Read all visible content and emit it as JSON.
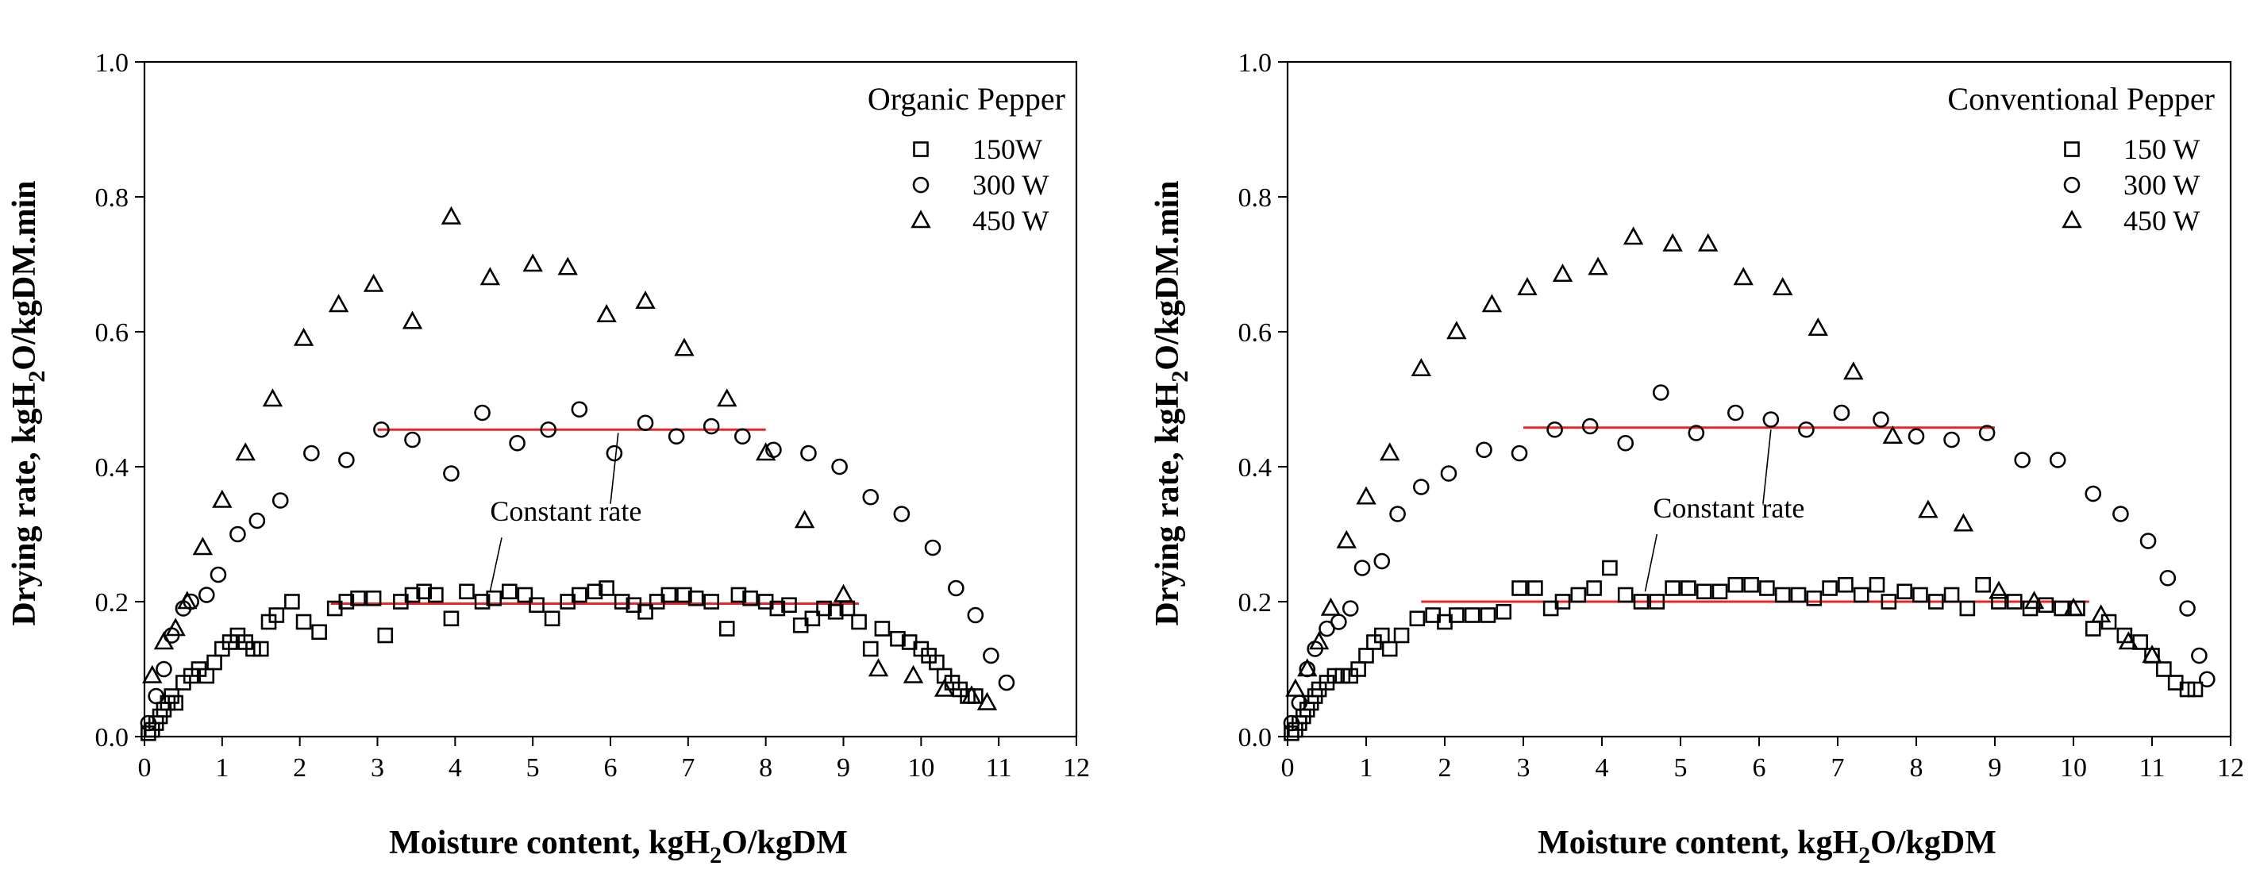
{
  "chart_data": [
    {
      "type": "scatter",
      "title": "Organic Pepper",
      "xlabel": "Moisture content, kgH2O/kgDM",
      "ylabel": "Drying rate, kgH2O/kgDM.min",
      "xlabel_parts": [
        "Moisture content, kgH",
        "2",
        "O/kgDM"
      ],
      "ylabel_parts": [
        "Drying rate, kgH",
        "2",
        "O/kgDM.min"
      ],
      "xlim": [
        0,
        12
      ],
      "ylim": [
        0,
        1.0
      ],
      "xticks": [
        "0",
        "1",
        "2",
        "3",
        "4",
        "5",
        "6",
        "7",
        "8",
        "9",
        "10",
        "11",
        "12"
      ],
      "yticks": [
        "0.0",
        "0.2",
        "0.4",
        "0.6",
        "0.8",
        "1.0"
      ],
      "grid": false,
      "legend_position": "top-right",
      "series": [
        {
          "name": "150W",
          "marker": "square",
          "x": [
            0.05,
            0.1,
            0.15,
            0.2,
            0.25,
            0.3,
            0.35,
            0.4,
            0.5,
            0.6,
            0.7,
            0.8,
            0.9,
            1.0,
            1.1,
            1.2,
            1.3,
            1.4,
            1.5,
            1.6,
            1.7,
            1.9,
            2.05,
            2.25,
            2.45,
            2.6,
            2.75,
            2.95,
            3.1,
            3.3,
            3.45,
            3.6,
            3.75,
            3.95,
            4.15,
            4.35,
            4.5,
            4.7,
            4.9,
            5.05,
            5.25,
            5.45,
            5.6,
            5.8,
            5.95,
            6.15,
            6.3,
            6.45,
            6.6,
            6.75,
            6.95,
            7.1,
            7.3,
            7.5,
            7.65,
            7.8,
            8.0,
            8.15,
            8.3,
            8.45,
            8.6,
            8.75,
            8.9,
            9.05,
            9.2,
            9.35,
            9.5,
            9.7,
            9.85,
            10.0,
            10.1,
            10.2,
            10.3,
            10.4,
            10.5,
            10.6,
            10.7
          ],
          "y": [
            0.005,
            0.01,
            0.02,
            0.03,
            0.04,
            0.05,
            0.06,
            0.05,
            0.08,
            0.09,
            0.1,
            0.09,
            0.11,
            0.13,
            0.14,
            0.15,
            0.14,
            0.13,
            0.13,
            0.17,
            0.18,
            0.2,
            0.17,
            0.155,
            0.19,
            0.2,
            0.205,
            0.205,
            0.15,
            0.2,
            0.21,
            0.215,
            0.21,
            0.175,
            0.215,
            0.2,
            0.205,
            0.215,
            0.21,
            0.195,
            0.175,
            0.2,
            0.21,
            0.215,
            0.22,
            0.2,
            0.195,
            0.185,
            0.2,
            0.21,
            0.21,
            0.205,
            0.2,
            0.16,
            0.21,
            0.205,
            0.2,
            0.19,
            0.195,
            0.165,
            0.175,
            0.19,
            0.185,
            0.19,
            0.17,
            0.13,
            0.16,
            0.145,
            0.14,
            0.13,
            0.12,
            0.11,
            0.09,
            0.08,
            0.07,
            0.06,
            0.06
          ]
        },
        {
          "name": "300 W",
          "marker": "circle",
          "x": [
            0.05,
            0.15,
            0.25,
            0.35,
            0.5,
            0.6,
            0.8,
            0.95,
            1.2,
            1.45,
            1.75,
            2.15,
            2.6,
            3.05,
            3.45,
            3.95,
            4.35,
            4.8,
            5.2,
            5.6,
            6.05,
            6.45,
            6.85,
            7.3,
            7.7,
            8.1,
            8.55,
            8.95,
            9.35,
            9.75,
            10.15,
            10.45,
            10.7,
            10.9,
            11.1
          ],
          "y": [
            0.02,
            0.06,
            0.1,
            0.15,
            0.19,
            0.2,
            0.21,
            0.24,
            0.3,
            0.32,
            0.35,
            0.42,
            0.41,
            0.455,
            0.44,
            0.39,
            0.48,
            0.435,
            0.455,
            0.485,
            0.42,
            0.465,
            0.445,
            0.46,
            0.445,
            0.425,
            0.42,
            0.4,
            0.355,
            0.33,
            0.28,
            0.22,
            0.18,
            0.12,
            0.08
          ]
        },
        {
          "name": "450 W",
          "marker": "triangle",
          "x": [
            0.1,
            0.25,
            0.4,
            0.55,
            0.75,
            1.0,
            1.3,
            1.65,
            2.05,
            2.5,
            2.95,
            3.45,
            3.95,
            4.45,
            5.0,
            5.45,
            5.95,
            6.45,
            6.95,
            7.5,
            8.0,
            8.5,
            9.0,
            9.45,
            9.9,
            10.3,
            10.65,
            10.85
          ],
          "y": [
            0.09,
            0.14,
            0.16,
            0.2,
            0.28,
            0.35,
            0.42,
            0.5,
            0.59,
            0.64,
            0.67,
            0.615,
            0.77,
            0.68,
            0.7,
            0.695,
            0.625,
            0.645,
            0.575,
            0.5,
            0.42,
            0.32,
            0.21,
            0.1,
            0.09,
            0.07,
            0.06,
            0.05
          ]
        }
      ],
      "fit_lines": [
        {
          "x": [
            3.0,
            8.0
          ],
          "y": [
            0.455,
            0.455
          ],
          "color": "#e8262a"
        },
        {
          "x": [
            2.4,
            9.2
          ],
          "y": [
            0.197,
            0.197
          ],
          "color": "#e8262a"
        }
      ],
      "annotation": {
        "text": "Constant rate",
        "x": 4.45,
        "y": 0.32,
        "pointers": [
          {
            "from": [
              6.0,
              0.345
            ],
            "to": [
              6.1,
              0.45
            ]
          },
          {
            "from": [
              4.6,
              0.295
            ],
            "to": [
              4.45,
              0.215
            ]
          }
        ]
      }
    },
    {
      "type": "scatter",
      "title": "Conventional Pepper",
      "xlabel": "Moisture content, kgH2O/kgDM",
      "ylabel": "Drying rate, kgH2O/kgDM.min",
      "xlabel_parts": [
        "Moisture content, kgH",
        "2",
        "O/kgDM"
      ],
      "ylabel_parts": [
        "Drying rate, kgH",
        "2",
        "O/kgDM.min"
      ],
      "xlim": [
        0,
        12
      ],
      "ylim": [
        0,
        1.0
      ],
      "xticks": [
        "0",
        "1",
        "2",
        "3",
        "4",
        "5",
        "6",
        "7",
        "8",
        "9",
        "10",
        "11",
        "12"
      ],
      "yticks": [
        "0.0",
        "0.2",
        "0.4",
        "0.6",
        "0.8",
        "1.0"
      ],
      "grid": false,
      "legend_position": "top-right",
      "series": [
        {
          "name": "150 W",
          "marker": "square",
          "x": [
            0.05,
            0.1,
            0.15,
            0.2,
            0.25,
            0.3,
            0.35,
            0.4,
            0.5,
            0.6,
            0.7,
            0.8,
            0.9,
            1.0,
            1.1,
            1.2,
            1.3,
            1.45,
            1.65,
            1.85,
            2.0,
            2.15,
            2.35,
            2.55,
            2.75,
            2.95,
            3.15,
            3.35,
            3.5,
            3.7,
            3.9,
            4.1,
            4.3,
            4.5,
            4.7,
            4.9,
            5.1,
            5.3,
            5.5,
            5.7,
            5.9,
            6.1,
            6.3,
            6.5,
            6.7,
            6.9,
            7.1,
            7.3,
            7.5,
            7.65,
            7.85,
            8.05,
            8.25,
            8.45,
            8.65,
            8.85,
            9.05,
            9.25,
            9.45,
            9.65,
            9.85,
            10.05,
            10.25,
            10.45,
            10.65,
            10.85,
            11.0,
            11.15,
            11.3,
            11.45,
            11.55
          ],
          "y": [
            0.005,
            0.01,
            0.02,
            0.03,
            0.04,
            0.05,
            0.06,
            0.07,
            0.08,
            0.09,
            0.09,
            0.09,
            0.1,
            0.12,
            0.14,
            0.15,
            0.13,
            0.15,
            0.175,
            0.18,
            0.17,
            0.18,
            0.18,
            0.18,
            0.185,
            0.22,
            0.22,
            0.19,
            0.2,
            0.21,
            0.22,
            0.25,
            0.21,
            0.2,
            0.2,
            0.22,
            0.22,
            0.215,
            0.215,
            0.225,
            0.225,
            0.22,
            0.21,
            0.21,
            0.205,
            0.22,
            0.225,
            0.21,
            0.225,
            0.2,
            0.215,
            0.21,
            0.2,
            0.21,
            0.19,
            0.225,
            0.2,
            0.2,
            0.19,
            0.195,
            0.19,
            0.19,
            0.16,
            0.17,
            0.15,
            0.14,
            0.12,
            0.1,
            0.08,
            0.07,
            0.07
          ]
        },
        {
          "name": "300 W",
          "marker": "circle",
          "x": [
            0.05,
            0.15,
            0.25,
            0.35,
            0.5,
            0.65,
            0.8,
            0.95,
            1.2,
            1.4,
            1.7,
            2.05,
            2.5,
            2.95,
            3.4,
            3.85,
            4.3,
            4.75,
            5.2,
            5.7,
            6.15,
            6.6,
            7.05,
            7.55,
            8.0,
            8.45,
            8.9,
            9.35,
            9.8,
            10.25,
            10.6,
            10.95,
            11.2,
            11.45,
            11.6,
            11.7
          ],
          "y": [
            0.02,
            0.05,
            0.1,
            0.13,
            0.16,
            0.17,
            0.19,
            0.25,
            0.26,
            0.33,
            0.37,
            0.39,
            0.425,
            0.42,
            0.455,
            0.46,
            0.435,
            0.51,
            0.45,
            0.48,
            0.47,
            0.455,
            0.48,
            0.47,
            0.445,
            0.44,
            0.45,
            0.41,
            0.41,
            0.36,
            0.33,
            0.29,
            0.235,
            0.19,
            0.12,
            0.085
          ]
        },
        {
          "name": "450 W",
          "marker": "triangle",
          "x": [
            0.1,
            0.25,
            0.4,
            0.55,
            0.75,
            1.0,
            1.3,
            1.7,
            2.15,
            2.6,
            3.05,
            3.5,
            3.95,
            4.4,
            4.9,
            5.35,
            5.8,
            6.3,
            6.75,
            7.2,
            7.7,
            8.15,
            8.6,
            9.05,
            9.5,
            10.0,
            10.35,
            10.7,
            11.0
          ],
          "y": [
            0.07,
            0.1,
            0.14,
            0.19,
            0.29,
            0.355,
            0.42,
            0.545,
            0.6,
            0.64,
            0.665,
            0.685,
            0.695,
            0.74,
            0.73,
            0.73,
            0.68,
            0.665,
            0.605,
            0.54,
            0.445,
            0.335,
            0.315,
            0.215,
            0.2,
            0.19,
            0.18,
            0.14,
            0.12
          ]
        }
      ],
      "fit_lines": [
        {
          "x": [
            3.0,
            9.0
          ],
          "y": [
            0.458,
            0.458
          ],
          "color": "#e8262a"
        },
        {
          "x": [
            1.7,
            10.2
          ],
          "y": [
            0.2,
            0.2
          ],
          "color": "#e8262a"
        }
      ],
      "annotation": {
        "text": "Constant rate",
        "x": 4.65,
        "y": 0.325,
        "pointers": [
          {
            "from": [
              6.05,
              0.345
            ],
            "to": [
              6.15,
              0.455
            ]
          },
          {
            "from": [
              4.7,
              0.3
            ],
            "to": [
              4.55,
              0.215
            ]
          }
        ]
      }
    }
  ]
}
